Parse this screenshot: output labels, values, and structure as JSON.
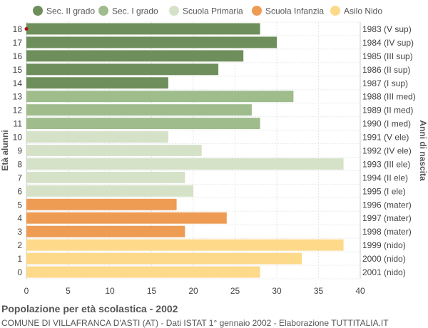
{
  "chart_data": {
    "type": "bar",
    "orientation": "horizontal",
    "title": "Popolazione per età scolastica - 2002",
    "subtitle": "COMUNE DI VILLAFRANCA D'ASTI (AT) - Dati ISTAT 1° gennaio 2002 - Elaborazione TUTTITALIA.IT",
    "ylabel": "Età alunni",
    "ylabel_right": "Anni di nascita",
    "xlim": [
      0,
      40
    ],
    "xticks": [
      0,
      5,
      10,
      15,
      20,
      25,
      30,
      35,
      40
    ],
    "grid": true,
    "legend_position": "top",
    "legend": [
      {
        "label": "Sec. II grado",
        "color": "#6e8f5b"
      },
      {
        "label": "Sec. I grado",
        "color": "#9ebc8c"
      },
      {
        "label": "Scuola Primaria",
        "color": "#d5e2c8"
      },
      {
        "label": "Scuola Infanzia",
        "color": "#ee9b54"
      },
      {
        "label": "Asilo Nido",
        "color": "#fdd98a"
      }
    ],
    "bars": [
      {
        "age": "18",
        "value": 28,
        "birth": "1983 (V sup)",
        "group": 0
      },
      {
        "age": "17",
        "value": 30,
        "birth": "1984 (IV sup)",
        "group": 0
      },
      {
        "age": "16",
        "value": 26,
        "birth": "1985 (III sup)",
        "group": 0
      },
      {
        "age": "15",
        "value": 23,
        "birth": "1986 (II sup)",
        "group": 0
      },
      {
        "age": "14",
        "value": 17,
        "birth": "1987 (I sup)",
        "group": 0
      },
      {
        "age": "13",
        "value": 32,
        "birth": "1988 (III med)",
        "group": 1
      },
      {
        "age": "12",
        "value": 27,
        "birth": "1989 (II med)",
        "group": 1
      },
      {
        "age": "11",
        "value": 28,
        "birth": "1990 (I med)",
        "group": 1
      },
      {
        "age": "10",
        "value": 17,
        "birth": "1991 (V ele)",
        "group": 2
      },
      {
        "age": "9",
        "value": 21,
        "birth": "1992 (IV ele)",
        "group": 2
      },
      {
        "age": "8",
        "value": 38,
        "birth": "1993 (III ele)",
        "group": 2
      },
      {
        "age": "7",
        "value": 19,
        "birth": "1994 (II ele)",
        "group": 2
      },
      {
        "age": "6",
        "value": 20,
        "birth": "1995 (I ele)",
        "group": 2
      },
      {
        "age": "5",
        "value": 18,
        "birth": "1996 (mater)",
        "group": 3
      },
      {
        "age": "4",
        "value": 24,
        "birth": "1997 (mater)",
        "group": 3
      },
      {
        "age": "3",
        "value": 19,
        "birth": "1998 (mater)",
        "group": 3
      },
      {
        "age": "2",
        "value": 38,
        "birth": "1999 (nido)",
        "group": 4
      },
      {
        "age": "1",
        "value": 33,
        "birth": "2000 (nido)",
        "group": 4
      },
      {
        "age": "0",
        "value": 28,
        "birth": "2001 (nido)",
        "group": 4
      }
    ]
  }
}
